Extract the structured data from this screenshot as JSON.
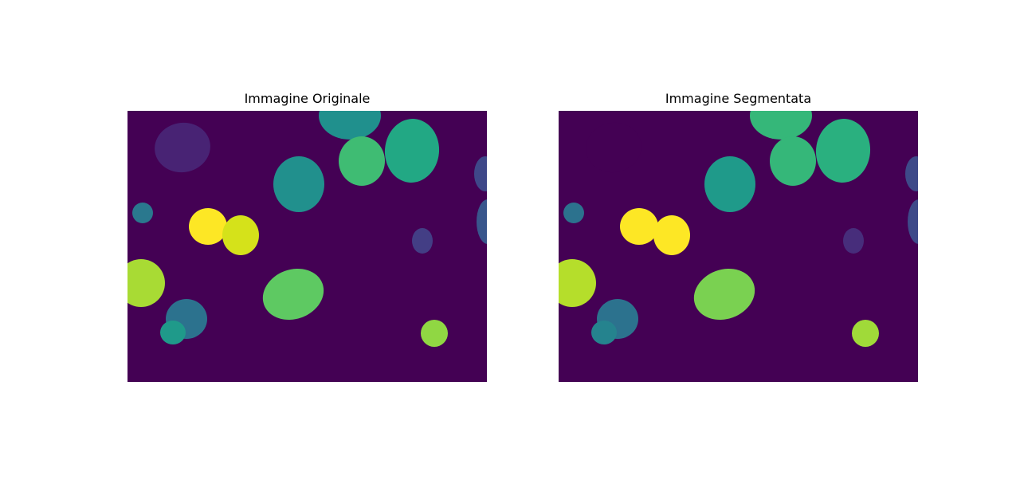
{
  "figure": {
    "panels": [
      {
        "title": "Immagine Originale",
        "background": "#440154",
        "cells": [
          "#482374",
          "#20908d",
          "#3f4889",
          "#39568c",
          "#22a884",
          "#3fbc73",
          "#21908d",
          "#fde725",
          "#d5e21a",
          "#a8db34",
          "#5ec962",
          "#2c728e",
          "#1f9a8a",
          "#433e85",
          "#90d743",
          "#2a788e"
        ]
      },
      {
        "title": "Immagine Segmentata",
        "background": "#440154",
        "cells": [
          "#440154",
          "#35b779",
          "#3e4a89",
          "#3e4a89",
          "#2ab07f",
          "#35b779",
          "#1f9a8a",
          "#fde725",
          "#fde725",
          "#b5de2b",
          "#7ad151",
          "#2c728e",
          "#25838e",
          "#472d7b",
          "#a0da39",
          "#2c728e"
        ]
      }
    ]
  }
}
